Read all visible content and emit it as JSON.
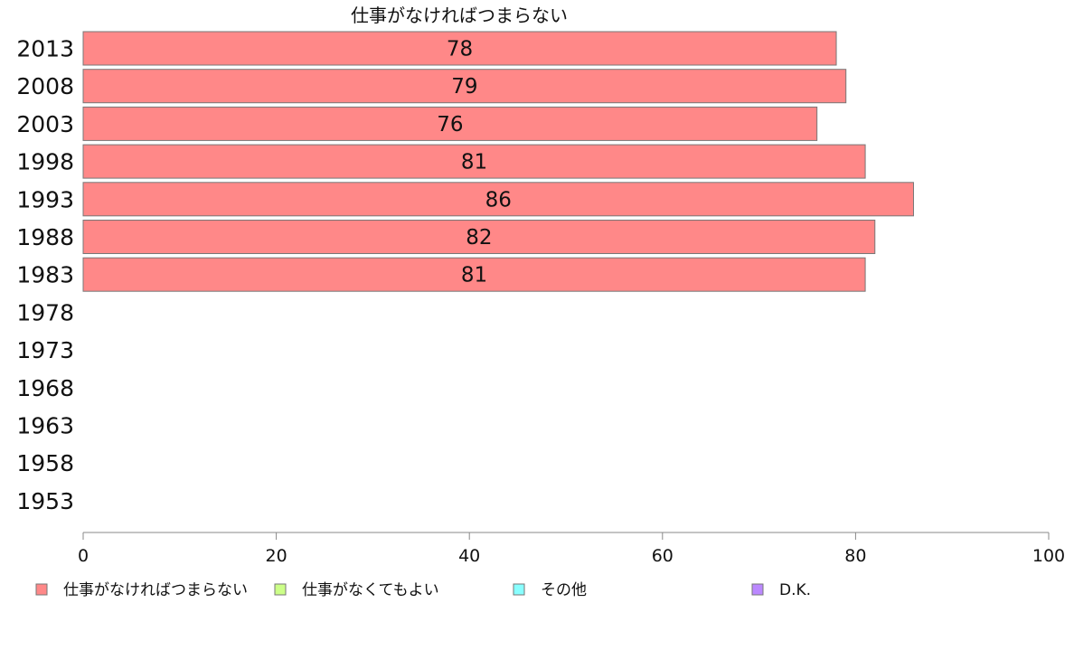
{
  "chart_data": {
    "type": "bar",
    "orientation": "horizontal",
    "title": "仕事がなければつまらない",
    "categories": [
      "2013",
      "2008",
      "2003",
      "1998",
      "1993",
      "1988",
      "1983",
      "1978",
      "1973",
      "1968",
      "1963",
      "1958",
      "1953"
    ],
    "series": [
      {
        "name": "仕事がなければつまらない",
        "color": "#ff8888",
        "values": [
          78,
          79,
          76,
          81,
          86,
          82,
          81,
          null,
          null,
          null,
          null,
          null,
          null
        ]
      }
    ],
    "data_labels": [
      "78",
      "79",
      "76",
      "81",
      "86",
      "82",
      "81",
      "",
      "",
      "",
      "",
      "",
      ""
    ],
    "xlim": [
      0,
      100
    ],
    "xticks": [
      "0",
      "20",
      "40",
      "60",
      "80",
      "100"
    ],
    "xlabel": "",
    "ylabel": "",
    "grid": false,
    "legend_position": "bottom",
    "legend": [
      {
        "label": "仕事がなければつまらない",
        "color": "#ff8888"
      },
      {
        "label": "仕事がなくてもよい",
        "color": "#ccff88"
      },
      {
        "label": "その他",
        "color": "#88ffff"
      },
      {
        "label": "D.K.",
        "color": "#bb88ff"
      }
    ]
  }
}
